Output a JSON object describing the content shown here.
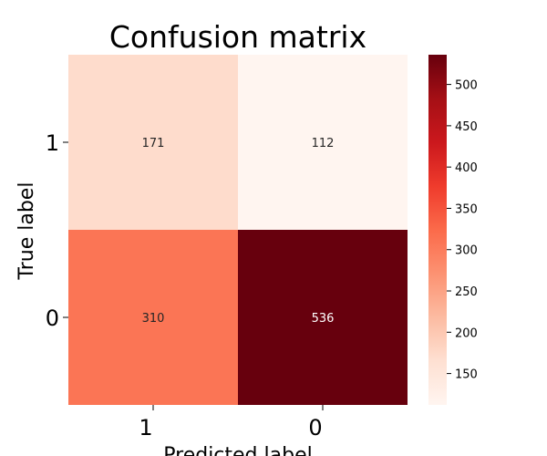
{
  "chart_data": {
    "type": "heatmap",
    "title": "Confusion matrix",
    "xlabel": "Predicted label",
    "ylabel": "True label",
    "x_categories": [
      "1",
      "0"
    ],
    "y_categories": [
      "1",
      "0"
    ],
    "values": [
      [
        171,
        112
      ],
      [
        310,
        536
      ]
    ],
    "colormap": "Reds",
    "color_range": [
      112,
      536
    ],
    "colorbar_ticks": [
      150,
      200,
      250,
      300,
      350,
      400,
      450,
      500
    ]
  }
}
